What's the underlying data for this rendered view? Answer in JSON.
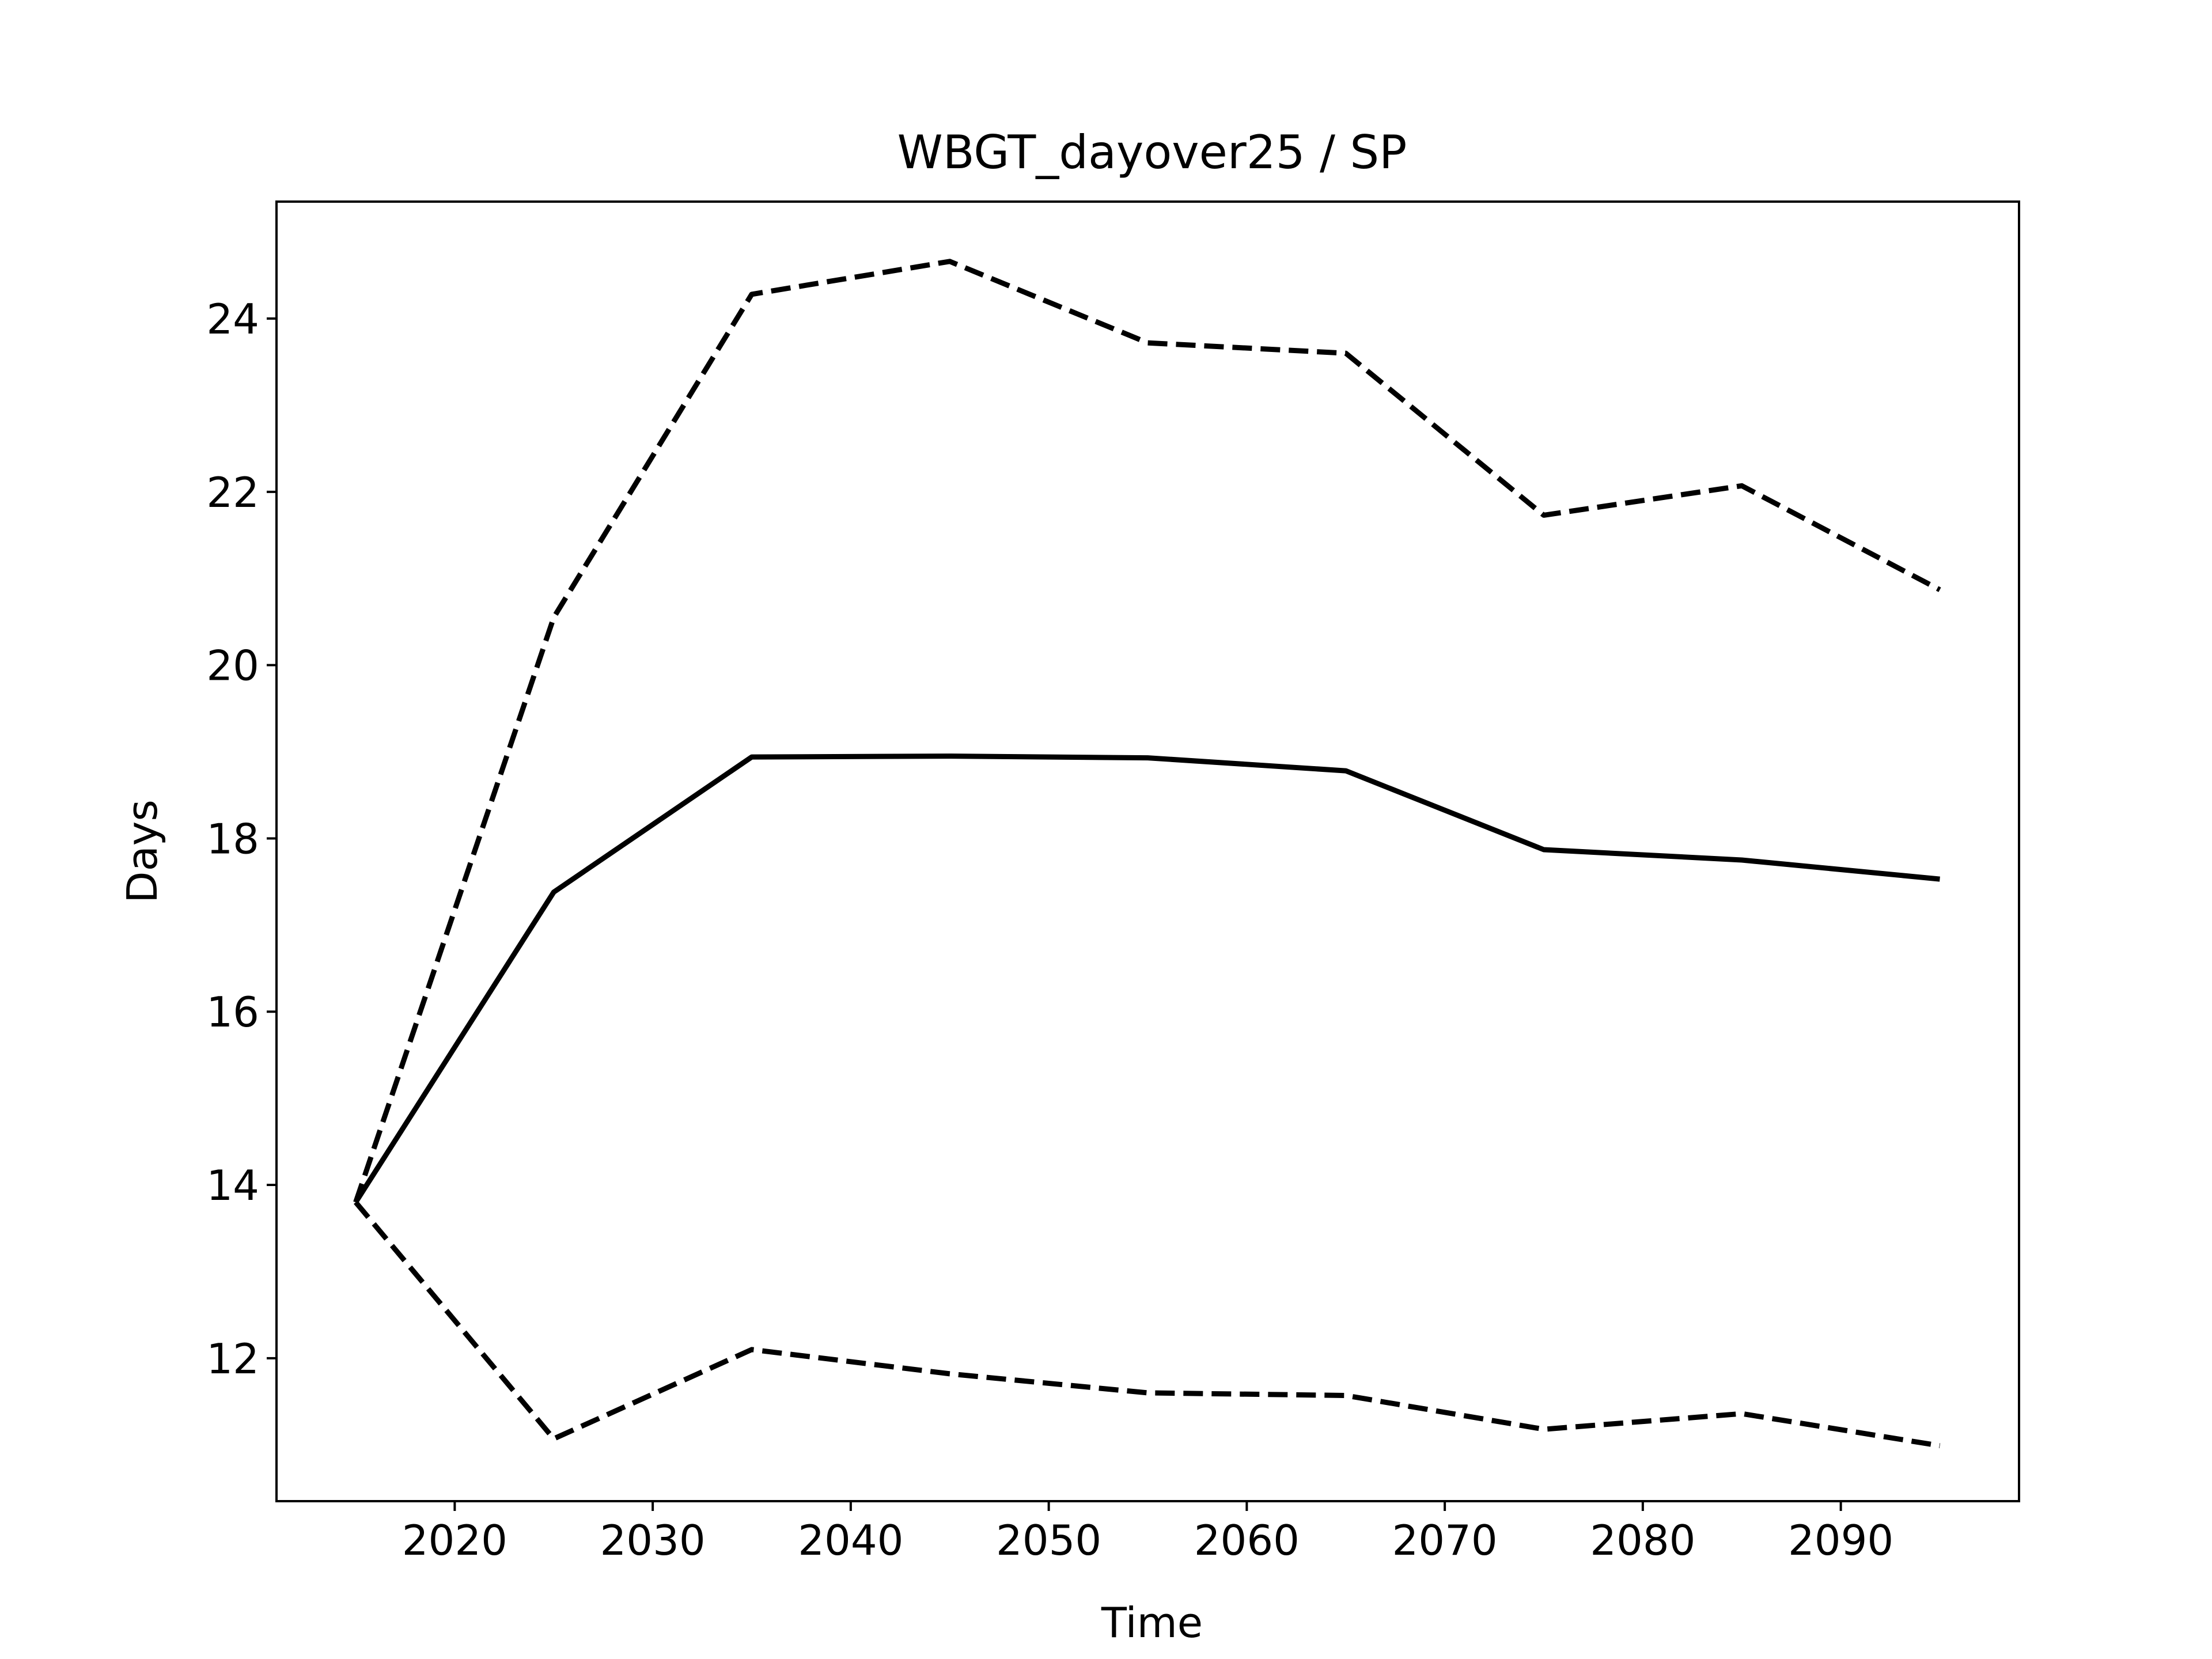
{
  "chart_data": {
    "type": "line",
    "title": "WBGT_dayover25 / SP",
    "xlabel": "Time",
    "ylabel": "Days",
    "x": [
      2015,
      2025,
      2035,
      2045,
      2055,
      2065,
      2075,
      2085,
      2095
    ],
    "xlim": [
      2011,
      2099
    ],
    "ylim": [
      10.35,
      25.35
    ],
    "xticks": [
      2020,
      2030,
      2040,
      2050,
      2060,
      2070,
      2080,
      2090
    ],
    "yticks": [
      12,
      14,
      16,
      18,
      20,
      22,
      24
    ],
    "grid": false,
    "legend": "none",
    "series": [
      {
        "style": "solid",
        "color": "#000000",
        "values": [
          13.8,
          17.38,
          18.94,
          18.95,
          18.93,
          18.78,
          17.87,
          17.75,
          17.53
        ]
      },
      {
        "style": "dashed",
        "color": "#000000",
        "values": [
          13.8,
          20.55,
          24.28,
          24.66,
          23.72,
          23.6,
          21.73,
          22.07,
          20.87
        ]
      },
      {
        "style": "dashed",
        "color": "#000000",
        "values": [
          13.8,
          11.07,
          12.1,
          11.82,
          11.6,
          11.57,
          11.18,
          11.36,
          10.99
        ]
      }
    ]
  }
}
